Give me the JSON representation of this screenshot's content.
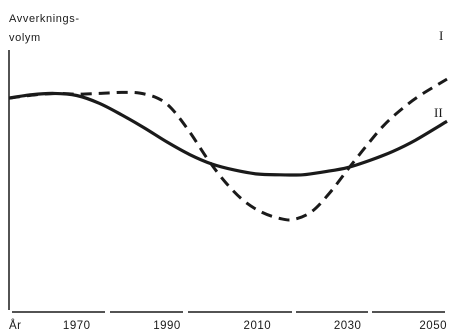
{
  "chart_data": {
    "type": "line",
    "ylabel": [
      "Avverknings-",
      "volym"
    ],
    "xlabel": "År",
    "x_ticks": [
      1970,
      1990,
      2010,
      2030,
      2050
    ],
    "xlim": [
      1955,
      2052
    ],
    "ylim": [
      0,
      100
    ],
    "grid": false,
    "series": [
      {
        "name": "I",
        "style": "dashed",
        "color": "#1a1a1a",
        "x": [
          1955,
          1961,
          1966,
          1970,
          1975,
          1980,
          1984,
          1988,
          1991,
          1995,
          1999,
          2003,
          2007,
          2011,
          2015,
          2018,
          2022,
          2026,
          2030,
          2034,
          2038,
          2042,
          2046,
          2052
        ],
        "y": [
          81.5,
          82.8,
          83.3,
          83.0,
          83.3,
          83.7,
          83.4,
          81.4,
          77.5,
          68.5,
          58.0,
          49.0,
          42.0,
          37.6,
          35.2,
          34.8,
          37.8,
          45.0,
          54.0,
          62.8,
          71.0,
          77.3,
          82.5,
          88.8
        ]
      },
      {
        "name": "II",
        "style": "solid",
        "color": "#1a1a1a",
        "x": [
          1955,
          1960,
          1965,
          1970,
          1975,
          1980,
          1985,
          1990,
          1995,
          2000,
          2005,
          2010,
          2015,
          2020,
          2025,
          2030,
          2035,
          2040,
          2045,
          2052
        ],
        "y": [
          81.5,
          82.8,
          83.3,
          82.5,
          79.5,
          75.0,
          70.0,
          64.6,
          59.8,
          56.1,
          53.8,
          52.3,
          52.0,
          52.0,
          53.2,
          54.8,
          57.6,
          61.0,
          65.3,
          72.6
        ]
      }
    ],
    "series_labels": [
      "I",
      "II"
    ]
  }
}
